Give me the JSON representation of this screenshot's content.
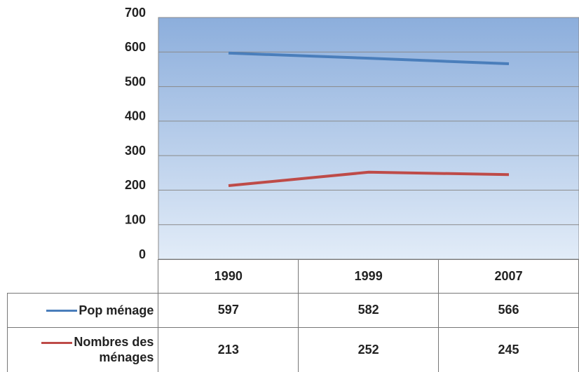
{
  "chart_data": {
    "type": "line",
    "categories": [
      "1990",
      "1999",
      "2007"
    ],
    "series": [
      {
        "name": "Pop ménage",
        "color": "#4a7ebb",
        "values": [
          597,
          582,
          566
        ]
      },
      {
        "name": "Nombres des ménages",
        "color": "#be4b48",
        "values": [
          213,
          252,
          245
        ]
      }
    ],
    "ylim": [
      0,
      700
    ],
    "yticks": [
      0,
      100,
      200,
      300,
      400,
      500,
      600,
      700
    ],
    "grid": true,
    "data_table": true
  }
}
